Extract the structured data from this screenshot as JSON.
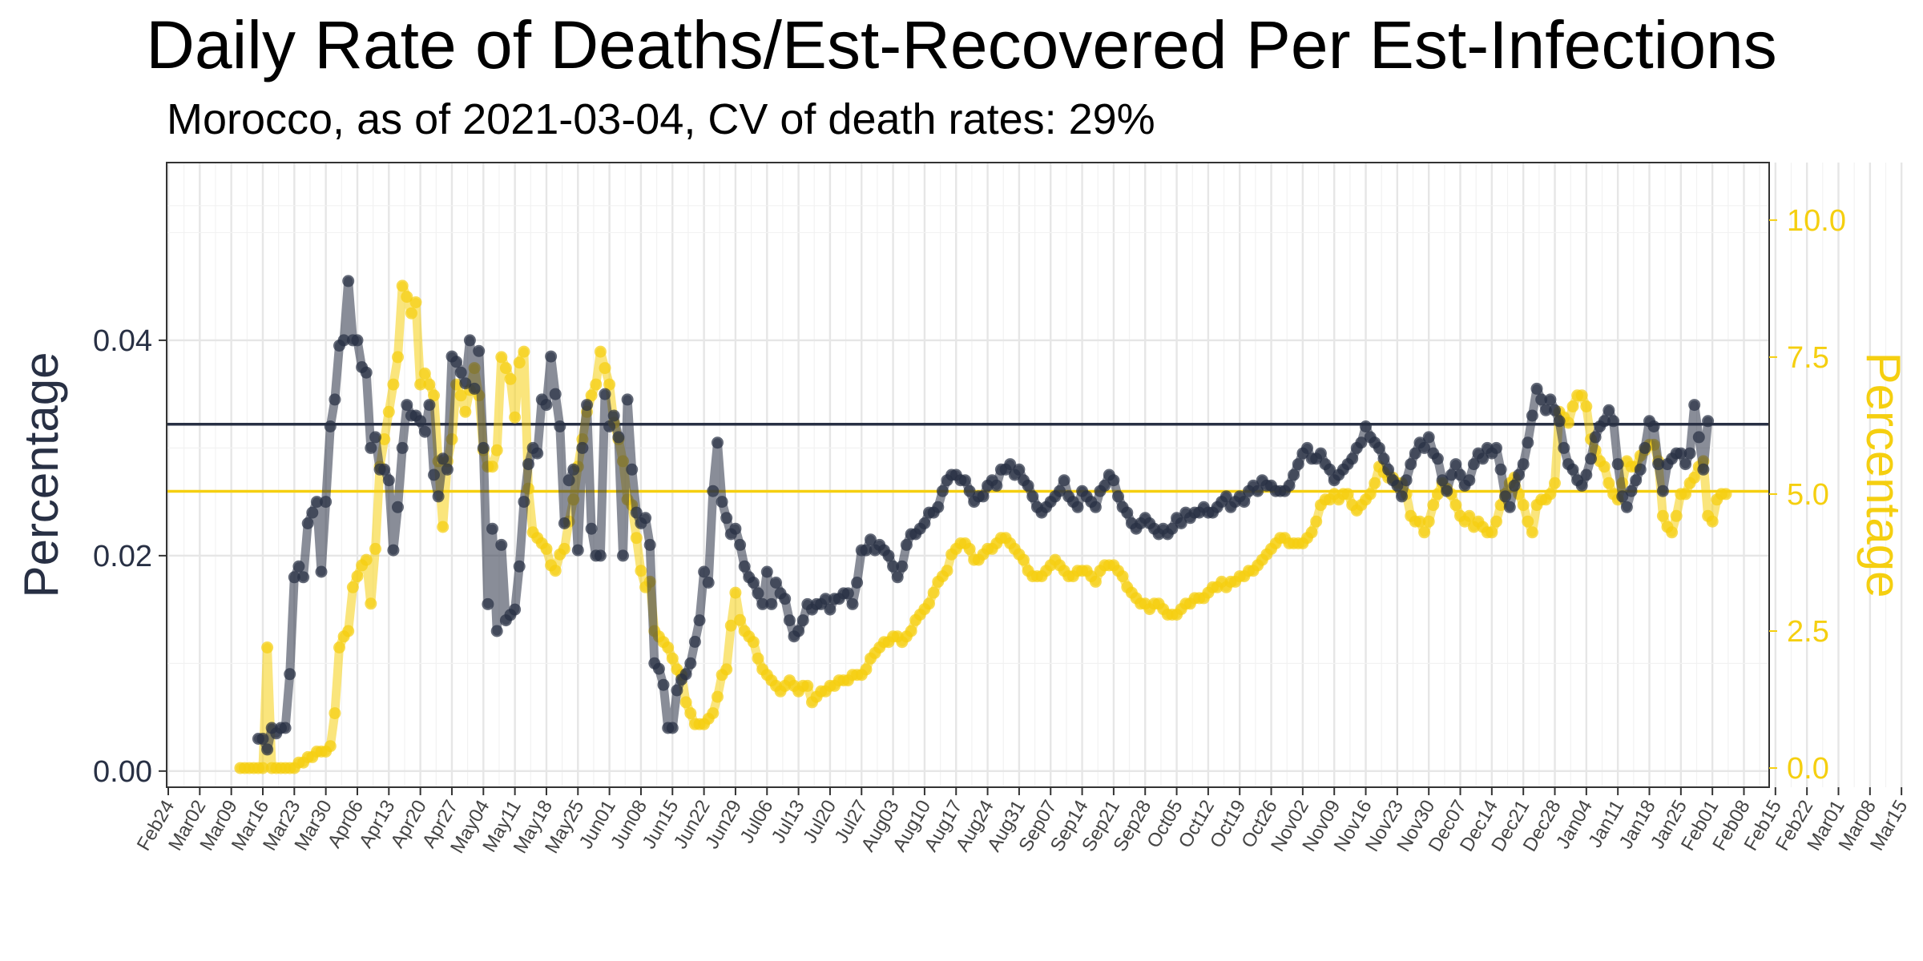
{
  "chart_data": {
    "type": "line",
    "title": "Daily Rate of Deaths/Est-Recovered Per Est-Infections",
    "subtitle": "Morocco, as of 2021-03-04, CV of death rates: 29%",
    "xlabel": "",
    "ylabel_left": "Percentage",
    "ylabel_right": "Percentage",
    "x_start_date": "2020-02-24",
    "x_ticks": [
      "Feb24",
      "Mar02",
      "Mar09",
      "Mar16",
      "Mar23",
      "Mar30",
      "Apr06",
      "Apr13",
      "Apr20",
      "Apr27",
      "May04",
      "May11",
      "May18",
      "May25",
      "Jun01",
      "Jun08",
      "Jun15",
      "Jun22",
      "Jun29",
      "Jul06",
      "Jul13",
      "Jul20",
      "Jul27",
      "Aug03",
      "Aug10",
      "Aug17",
      "Aug24",
      "Aug31",
      "Sep07",
      "Sep14",
      "Sep21",
      "Sep28",
      "Oct05",
      "Oct12",
      "Oct19",
      "Oct26",
      "Nov02",
      "Nov09",
      "Nov16",
      "Nov23",
      "Nov30",
      "Dec07",
      "Dec14",
      "Dec21",
      "Dec28",
      "Jan04",
      "Jan11",
      "Jan18",
      "Jan25",
      "Feb01",
      "Feb08",
      "Feb15",
      "Feb22",
      "Mar01",
      "Mar08",
      "Mar15"
    ],
    "y_left_ticks": [
      "0.00",
      "0.02",
      "0.04"
    ],
    "y_right_ticks": [
      "0.0",
      "2.5",
      "5.0",
      "7.5",
      "10.0"
    ],
    "ylim_left": [
      -0.0015,
      0.0565
    ],
    "ylim_right": [
      -0.35,
      11.05
    ],
    "grid": true,
    "colors": {
      "deaths": "#283044",
      "recovered": "#F5CF10"
    },
    "hlines": {
      "deaths_mean": 0.0322,
      "recovered_mean": 5.05
    },
    "series": [
      {
        "axis": "left",
        "color": "#283044",
        "start_date": "2020-03-15",
        "values": [
          0.003,
          0.003,
          0.002,
          0.004,
          0.0035,
          0.004,
          0.004,
          0.009,
          0.018,
          0.019,
          0.018,
          0.023,
          0.024,
          0.025,
          0.0185,
          0.025,
          0.032,
          0.0345,
          0.0395,
          0.04,
          0.0455,
          0.04,
          0.04,
          0.0375,
          0.037,
          0.03,
          0.031,
          0.028,
          0.028,
          0.027,
          0.0205,
          0.0245,
          0.03,
          0.034,
          0.033,
          0.033,
          0.0325,
          0.0315,
          0.034,
          0.0275,
          0.0255,
          0.029,
          0.028,
          0.0385,
          0.038,
          0.037,
          0.036,
          0.04,
          0.0355,
          0.039,
          0.03,
          0.0155,
          0.0225,
          0.013,
          0.021,
          0.014,
          0.0145,
          0.015,
          0.019,
          0.025,
          0.0285,
          0.03,
          0.0295,
          0.0345,
          0.034,
          0.0385,
          0.035,
          0.032,
          0.023,
          0.027,
          0.028,
          0.0205,
          0.03,
          0.034,
          0.0225,
          0.02,
          0.02,
          0.035,
          0.032,
          0.033,
          0.031,
          0.02,
          0.0345,
          0.028,
          0.024,
          0.023,
          0.0235,
          0.021,
          0.01,
          0.0095,
          0.008,
          0.004,
          0.004,
          0.0075,
          0.0085,
          0.009,
          0.01,
          0.012,
          0.014,
          0.0185,
          0.0175,
          0.026,
          0.0305,
          0.025,
          0.0235,
          0.022,
          0.0225,
          0.021,
          0.019,
          0.018,
          0.0175,
          0.0165,
          0.0155,
          0.0185,
          0.0155,
          0.0175,
          0.0165,
          0.016,
          0.014,
          0.0125,
          0.013,
          0.014,
          0.0155,
          0.015,
          0.0155,
          0.0155,
          0.016,
          0.015,
          0.016,
          0.016,
          0.0165,
          0.0165,
          0.0155,
          0.0175,
          0.0205,
          0.0205,
          0.0215,
          0.0205,
          0.021,
          0.0205,
          0.02,
          0.019,
          0.018,
          0.019,
          0.021,
          0.022,
          0.022,
          0.0225,
          0.023,
          0.024,
          0.024,
          0.0245,
          0.026,
          0.027,
          0.0275,
          0.0275,
          0.027,
          0.027,
          0.026,
          0.025,
          0.0255,
          0.0255,
          0.0265,
          0.027,
          0.0265,
          0.028,
          0.028,
          0.0285,
          0.0275,
          0.028,
          0.027,
          0.0265,
          0.0255,
          0.0245,
          0.024,
          0.0245,
          0.025,
          0.0255,
          0.026,
          0.027,
          0.0255,
          0.025,
          0.0245,
          0.026,
          0.0255,
          0.025,
          0.0245,
          0.026,
          0.0265,
          0.0275,
          0.027,
          0.0255,
          0.0245,
          0.024,
          0.023,
          0.0225,
          0.023,
          0.0235,
          0.023,
          0.0225,
          0.022,
          0.0225,
          0.022,
          0.0225,
          0.0235,
          0.023,
          0.024,
          0.0235,
          0.024,
          0.024,
          0.0245,
          0.024,
          0.024,
          0.0245,
          0.025,
          0.0255,
          0.0245,
          0.025,
          0.0255,
          0.025,
          0.026,
          0.0265,
          0.026,
          0.027,
          0.0265,
          0.0265,
          0.026,
          0.026,
          0.026,
          0.0265,
          0.0275,
          0.0285,
          0.0295,
          0.03,
          0.029,
          0.029,
          0.0295,
          0.0285,
          0.028,
          0.027,
          0.0275,
          0.028,
          0.0285,
          0.029,
          0.03,
          0.0305,
          0.032,
          0.031,
          0.0305,
          0.03,
          0.029,
          0.028,
          0.027,
          0.0265,
          0.0255,
          0.027,
          0.0285,
          0.0295,
          0.0305,
          0.03,
          0.031,
          0.0295,
          0.029,
          0.027,
          0.026,
          0.0275,
          0.0285,
          0.0275,
          0.0265,
          0.027,
          0.0285,
          0.0295,
          0.029,
          0.03,
          0.0295,
          0.03,
          0.028,
          0.0255,
          0.0245,
          0.0265,
          0.0275,
          0.0285,
          0.0305,
          0.033,
          0.0355,
          0.0345,
          0.0335,
          0.0345,
          0.0335,
          0.0325,
          0.03,
          0.0285,
          0.028,
          0.027,
          0.0265,
          0.0275,
          0.029,
          0.031,
          0.032,
          0.0325,
          0.0335,
          0.0325,
          0.0285,
          0.0255,
          0.0245,
          0.026,
          0.027,
          0.028,
          0.03,
          0.0325,
          0.032,
          0.0285,
          0.026,
          0.0285,
          0.029,
          0.0295,
          0.0295,
          0.0285,
          0.0295,
          0.034,
          0.031,
          0.028,
          0.0325
        ]
      },
      {
        "axis": "right",
        "color": "#F5CF10",
        "start_date": "2020-03-11",
        "values": [
          0.0,
          0.0,
          0.0,
          0.0,
          0.0,
          0.0,
          2.2,
          0.0,
          0.0,
          0.0,
          0.0,
          0.0,
          0.0,
          0.1,
          0.1,
          0.2,
          0.2,
          0.3,
          0.3,
          0.3,
          0.4,
          1.0,
          2.2,
          2.4,
          2.5,
          3.3,
          3.5,
          3.7,
          3.8,
          3.0,
          4.0,
          5.5,
          6.0,
          6.5,
          7.0,
          7.5,
          8.8,
          8.6,
          8.3,
          8.5,
          7.0,
          7.2,
          7.0,
          6.8,
          5.6,
          4.4,
          5.6,
          6.0,
          7.0,
          6.8,
          6.5,
          6.9,
          7.3,
          6.8,
          5.8,
          5.5,
          5.5,
          5.8,
          7.5,
          7.3,
          7.1,
          6.4,
          7.4,
          7.6,
          5.1,
          4.3,
          4.2,
          4.1,
          4.0,
          3.7,
          3.6,
          3.9,
          4.0,
          4.5,
          4.9,
          5.5,
          6.0,
          6.5,
          6.8,
          7.0,
          7.6,
          7.3,
          7.0,
          6.3,
          6.0,
          5.6,
          4.9,
          4.8,
          4.2,
          3.6,
          3.3,
          3.4,
          2.5,
          2.4,
          2.3,
          2.2,
          2.0,
          1.8,
          1.7,
          1.2,
          1.0,
          0.8,
          0.8,
          0.8,
          0.9,
          1.0,
          1.3,
          1.7,
          1.8,
          2.6,
          3.2,
          2.7,
          2.5,
          2.4,
          2.3,
          2.0,
          1.8,
          1.7,
          1.6,
          1.5,
          1.4,
          1.5,
          1.6,
          1.5,
          1.4,
          1.5,
          1.5,
          1.2,
          1.3,
          1.4,
          1.4,
          1.5,
          1.5,
          1.6,
          1.6,
          1.6,
          1.7,
          1.7,
          1.7,
          1.8,
          2.0,
          2.1,
          2.2,
          2.3,
          2.3,
          2.4,
          2.4,
          2.3,
          2.4,
          2.5,
          2.7,
          2.8,
          2.9,
          3.0,
          3.2,
          3.4,
          3.5,
          3.6,
          3.9,
          4.0,
          4.1,
          4.1,
          4.0,
          3.8,
          3.8,
          3.9,
          4.0,
          4.0,
          4.1,
          4.2,
          4.2,
          4.1,
          4.0,
          3.9,
          3.8,
          3.6,
          3.5,
          3.5,
          3.5,
          3.6,
          3.7,
          3.8,
          3.7,
          3.6,
          3.5,
          3.5,
          3.6,
          3.6,
          3.6,
          3.5,
          3.4,
          3.6,
          3.7,
          3.7,
          3.7,
          3.6,
          3.5,
          3.3,
          3.2,
          3.1,
          3.0,
          3.0,
          2.9,
          3.0,
          3.0,
          2.9,
          2.8,
          2.8,
          2.8,
          2.9,
          3.0,
          3.0,
          3.1,
          3.1,
          3.1,
          3.2,
          3.3,
          3.3,
          3.4,
          3.3,
          3.4,
          3.4,
          3.5,
          3.5,
          3.6,
          3.6,
          3.7,
          3.8,
          3.9,
          4.0,
          4.1,
          4.2,
          4.2,
          4.1,
          4.1,
          4.1,
          4.1,
          4.2,
          4.3,
          4.5,
          4.8,
          4.9,
          4.9,
          5.0,
          4.9,
          5.0,
          5.0,
          4.8,
          4.7,
          4.8,
          4.9,
          5.0,
          5.2,
          5.5,
          5.4,
          5.3,
          5.3,
          5.2,
          5.2,
          5.0,
          4.6,
          4.5,
          4.5,
          4.3,
          4.5,
          4.8,
          5.0,
          5.2,
          5.1,
          5.0,
          4.8,
          4.6,
          4.5,
          4.6,
          4.4,
          4.5,
          4.4,
          4.3,
          4.3,
          4.5,
          4.8,
          5.0,
          5.2,
          5.3,
          5.0,
          4.8,
          4.5,
          4.3,
          4.8,
          4.9,
          4.9,
          5.0,
          5.2,
          6.5,
          6.4,
          6.3,
          6.6,
          6.8,
          6.8,
          6.6,
          6.0,
          5.8,
          5.6,
          5.5,
          5.2,
          5.0,
          4.9,
          5.2,
          5.6,
          5.5,
          5.5,
          5.7,
          5.8,
          5.9,
          5.9,
          5.6,
          4.6,
          4.4,
          4.3,
          4.6,
          5.0,
          5.0,
          5.2,
          5.3,
          5.5,
          5.6,
          4.6,
          4.5,
          4.9,
          5.0,
          5.0
        ]
      }
    ]
  }
}
